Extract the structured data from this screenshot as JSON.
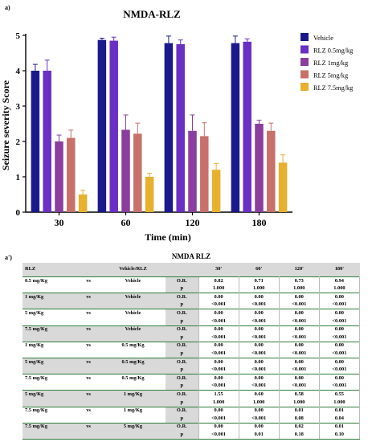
{
  "panel_a_label": "a)",
  "panel_b_label": "a')",
  "chart_data": {
    "type": "bar",
    "title": "NMDA-RLZ",
    "xlabel": "Time (min)",
    "ylabel": "Seizure severity Score",
    "ylim": [
      0,
      5
    ],
    "yticks": [
      "0",
      "1",
      "2",
      "3",
      "4",
      "5"
    ],
    "categories": [
      "30",
      "60",
      "120",
      "180"
    ],
    "legend_position": "right",
    "series": [
      {
        "name": "Vehicle",
        "color": "#1a1a8c",
        "values": [
          4.0,
          4.87,
          4.78,
          4.78
        ],
        "errors": [
          0.18,
          0.05,
          0.2,
          0.2
        ]
      },
      {
        "name": "RLZ 0.5mg/kg",
        "color": "#6a2fc4",
        "values": [
          4.0,
          4.85,
          4.75,
          4.82
        ],
        "errors": [
          0.3,
          0.1,
          0.12,
          0.08
        ]
      },
      {
        "name": "RLZ 1mg/kg",
        "color": "#8a3e9e",
        "values": [
          2.0,
          2.33,
          2.3,
          2.5
        ],
        "errors": [
          0.18,
          0.42,
          0.45,
          0.1
        ]
      },
      {
        "name": "RLZ 5mg/kg",
        "color": "#c8706a",
        "values": [
          2.1,
          2.22,
          2.15,
          2.3
        ],
        "errors": [
          0.22,
          0.3,
          0.38,
          0.22
        ]
      },
      {
        "name": "RLZ 7.5mg/kg",
        "color": "#e7b02d",
        "values": [
          0.5,
          1.0,
          1.2,
          1.4
        ],
        "errors": [
          0.12,
          0.1,
          0.18,
          0.22
        ]
      }
    ]
  },
  "table": {
    "title": "NMDA RLZ",
    "headers": {
      "col_a": "RLZ",
      "col_b": "Vehicle/RLZ",
      "t30": "30'",
      "t60": "60'",
      "t120": "120'",
      "t180": "180'"
    },
    "rows": [
      {
        "a": "0.5 mg/Kg",
        "vs": "vs",
        "b": "Vehicle",
        "or": [
          "0.82",
          "0.71",
          "0.73",
          "0.94"
        ],
        "p": [
          "1.000",
          "1.000",
          "1.000",
          "1.000"
        ]
      },
      {
        "a": "1 mg/Kg",
        "vs": "vs",
        "b": "Vehicle",
        "or": [
          "0.00",
          "0.00",
          "0.00",
          "0.00"
        ],
        "p": [
          "<0.001",
          "<0.001",
          "<0.001",
          "<0.001"
        ]
      },
      {
        "a": "5 mg/Kg",
        "vs": "vs",
        "b": "Vehicle",
        "or": [
          "0.00",
          "0.00",
          "0.00",
          "0.00"
        ],
        "p": [
          "<0.001",
          "<0.001",
          "<0.001",
          "<0.001"
        ]
      },
      {
        "a": "7.5 mg/Kg",
        "vs": "vs",
        "b": "Vehicle",
        "or": [
          "0.00",
          "0.00",
          "0.00",
          "0.00"
        ],
        "p": [
          "<0.001",
          "<0.001",
          "<0.001",
          "<0.001"
        ]
      },
      {
        "a": "1 mg/Kg",
        "vs": "vs",
        "b": "0.5 mg/Kg",
        "or": [
          "0.00",
          "0.00",
          "0.00",
          "0.00"
        ],
        "p": [
          "<0.001",
          "<0.001",
          "<0.001",
          "<0.001"
        ]
      },
      {
        "a": "5 mg/Kg",
        "vs": "vs",
        "b": "0.5 mg/Kg",
        "or": [
          "0.00",
          "0.00",
          "0.00",
          "0.00"
        ],
        "p": [
          "<0.001",
          "<0.001",
          "<0.001",
          "<0.001"
        ]
      },
      {
        "a": "7.5 mg/Kg",
        "vs": "vs",
        "b": "0.5 mg/Kg",
        "or": [
          "0.00",
          "0.00",
          "0.00",
          "0.00"
        ],
        "p": [
          "<0.001",
          "<0.001",
          "<0.001",
          "<0.001"
        ]
      },
      {
        "a": "5 mg/Kg",
        "vs": "vs",
        "b": "1 mg/Kg",
        "or": [
          "1.55",
          "0.60",
          "0.58",
          "0.55"
        ],
        "p": [
          "1.000",
          "1.000",
          "1.000",
          "1.000"
        ]
      },
      {
        "a": "7.5 mg/Kg",
        "vs": "vs",
        "b": "1 mg/Kg",
        "or": [
          "0.00",
          "0.00",
          "0.01",
          "0.01"
        ],
        "p": [
          "<0.001",
          "<0.001",
          "0.08",
          "0.04"
        ]
      },
      {
        "a": "7.5 mg/Kg",
        "vs": "vs",
        "b": "5 mg/Kg",
        "or": [
          "0.00",
          "0.00",
          "0.02",
          "0.01"
        ],
        "p": [
          "<0.001",
          "0.01",
          "0.18",
          "0.10"
        ]
      }
    ],
    "stat_labels": {
      "or": "O.R.",
      "p": "p"
    }
  }
}
